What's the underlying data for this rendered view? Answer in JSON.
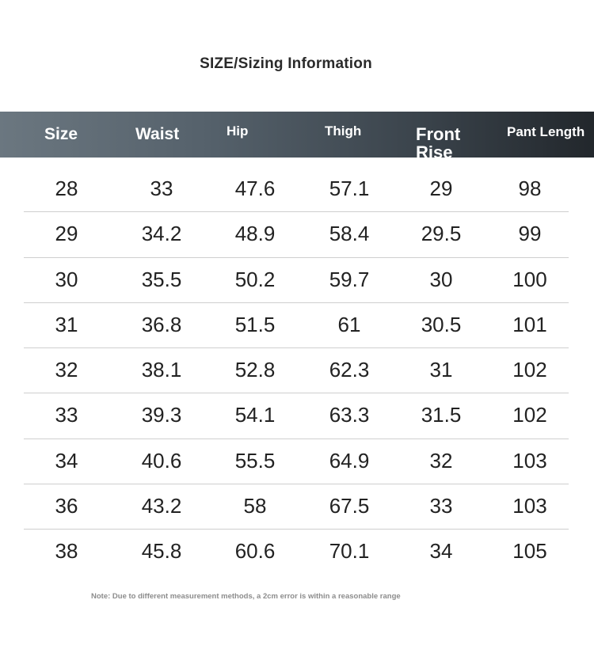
{
  "title": "SIZE/Sizing Information",
  "header": {
    "colors": {
      "gradient_start": "#6b7780",
      "gradient_end": "#22272c",
      "text": "#ffffff"
    },
    "columns": [
      "Size",
      "Waist",
      "Hip",
      "Thigh",
      "Front Rise",
      "Pant Length"
    ]
  },
  "table": {
    "rows": [
      [
        "28",
        "33",
        "47.6",
        "57.1",
        "29",
        "98"
      ],
      [
        "29",
        "34.2",
        "48.9",
        "58.4",
        "29.5",
        "99"
      ],
      [
        "30",
        "35.5",
        "50.2",
        "59.7",
        "30",
        "100"
      ],
      [
        "31",
        "36.8",
        "51.5",
        "61",
        "30.5",
        "101"
      ],
      [
        "32",
        "38.1",
        "52.8",
        "62.3",
        "31",
        "102"
      ],
      [
        "33",
        "39.3",
        "54.1",
        "63.3",
        "31.5",
        "102"
      ],
      [
        "34",
        "40.6",
        "55.5",
        "64.9",
        "32",
        "103"
      ],
      [
        "36",
        "43.2",
        "58",
        "67.5",
        "33",
        "103"
      ],
      [
        "38",
        "45.8",
        "60.6",
        "70.1",
        "34",
        "105"
      ]
    ]
  },
  "note": "Note: Due to different measurement methods, a 2cm error is within a reasonable range"
}
